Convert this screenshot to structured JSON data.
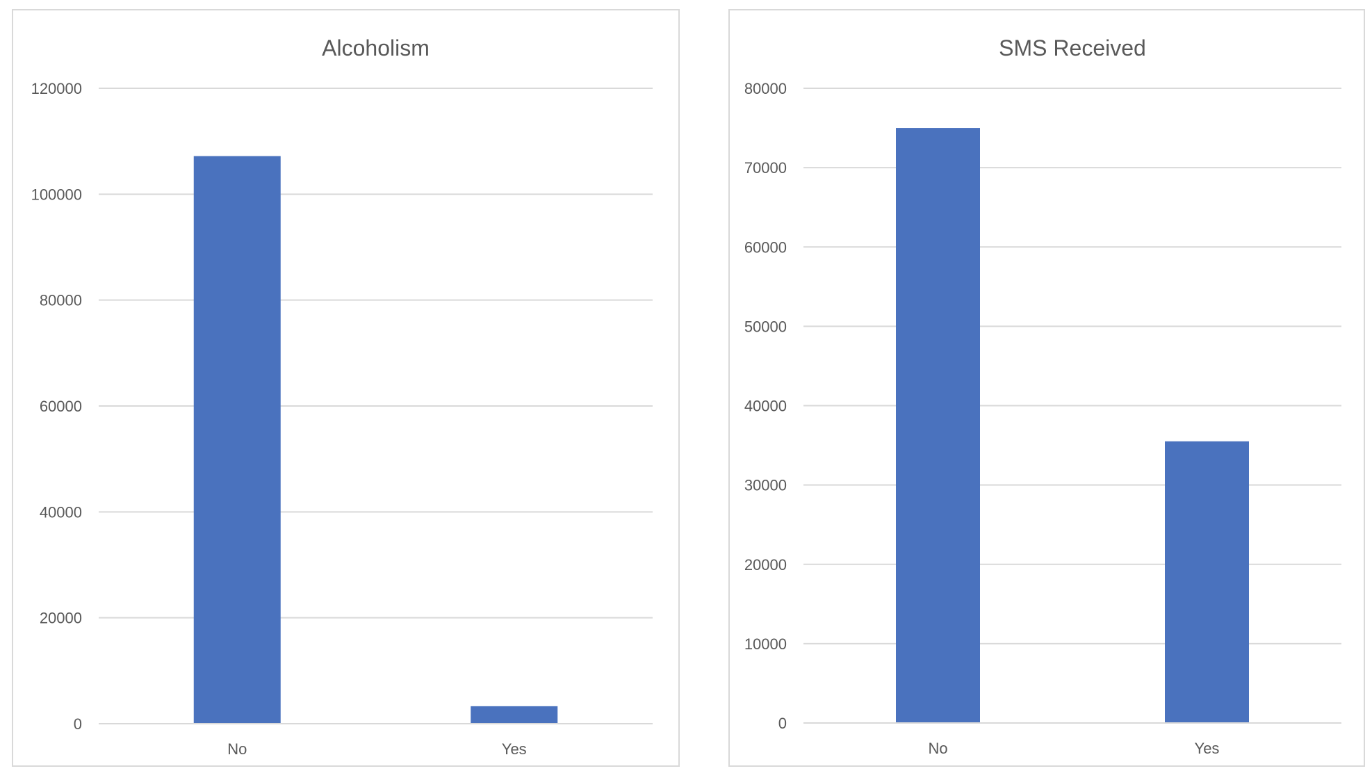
{
  "colors": {
    "bar": "#4a72be",
    "grid": "#d9d9d9",
    "text": "#595959",
    "border": "#d9d9d9"
  },
  "chart_data": [
    {
      "type": "bar",
      "title": "Alcoholism",
      "categories": [
        "No",
        "Yes"
      ],
      "values": [
        107200,
        3300
      ],
      "ylim": [
        0,
        120000
      ],
      "yticks": [
        0,
        20000,
        40000,
        60000,
        80000,
        100000,
        120000
      ],
      "grid": true,
      "legend": "none"
    },
    {
      "type": "bar",
      "title": "SMS Received",
      "categories": [
        "No",
        "Yes"
      ],
      "values": [
        75000,
        35500
      ],
      "ylim": [
        0,
        80000
      ],
      "yticks": [
        0,
        10000,
        20000,
        30000,
        40000,
        50000,
        60000,
        70000,
        80000
      ],
      "grid": true,
      "legend": "none"
    }
  ]
}
